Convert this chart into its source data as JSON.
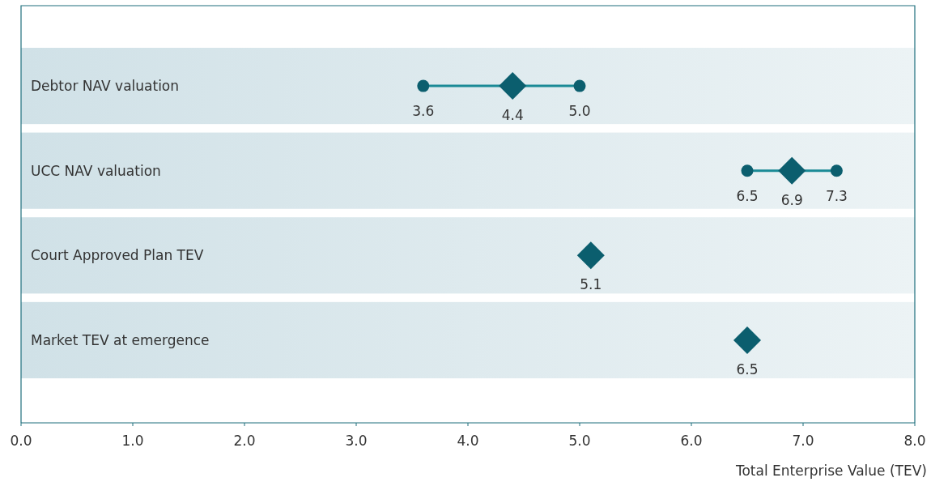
{
  "chart_data": {
    "type": "scatter",
    "orientation": "horizontal",
    "xlabel": "Total Enterprise Value (TEV)",
    "categories": [
      "Debtor NAV valuation",
      "UCC NAV valuation",
      "Court Approved Plan TEV",
      "Market TEV at emergence"
    ],
    "series": [
      {
        "color": "#0b5e6e",
        "marker": "circle",
        "values": [
          3.6,
          6.5,
          null,
          null
        ],
        "value_labels": [
          "3.6",
          "6.5",
          null,
          null
        ]
      },
      {
        "color": "#0b5e6e",
        "marker": "circle",
        "values": [
          5.0,
          7.3,
          null,
          null
        ],
        "value_labels": [
          "5.0",
          "7.3",
          null,
          null
        ]
      },
      {
        "color": "#0b5e6e",
        "marker": "diamond",
        "values": [
          4.4,
          6.9,
          5.1,
          6.5
        ],
        "value_labels": [
          "4.4",
          "6.9",
          "5.1",
          "6.5"
        ]
      }
    ],
    "grid": false,
    "bands": [
      {
        "axis": "y",
        "from": "Debtor NAV valuation",
        "to": "Debtor NAV valuation",
        "color": "#d0e1e7"
      },
      {
        "axis": "y",
        "from": "UCC NAV valuation",
        "to": "UCC NAV valuation",
        "color": "#d0e1e7"
      },
      {
        "axis": "y",
        "from": "Court Approved Plan TEV",
        "to": "Court Approved Plan TEV",
        "color": "#d0e1e7"
      },
      {
        "axis": "y",
        "from": "Market TEV at emergence",
        "to": "Market TEV at emergence",
        "color": "#d0e1e7"
      }
    ],
    "xlim": [
      0,
      8
    ],
    "xticks": [
      {
        "value": 0,
        "label": "0.0"
      },
      {
        "value": 1,
        "label": "1.0"
      },
      {
        "value": 2,
        "label": "2.0"
      },
      {
        "value": 3,
        "label": "3.0"
      },
      {
        "value": 4,
        "label": "4.0"
      },
      {
        "value": 5,
        "label": "5.0"
      },
      {
        "value": 6,
        "label": "6.0"
      },
      {
        "value": 7,
        "label": "7.0"
      },
      {
        "value": 8,
        "label": "8.0"
      }
    ]
  }
}
